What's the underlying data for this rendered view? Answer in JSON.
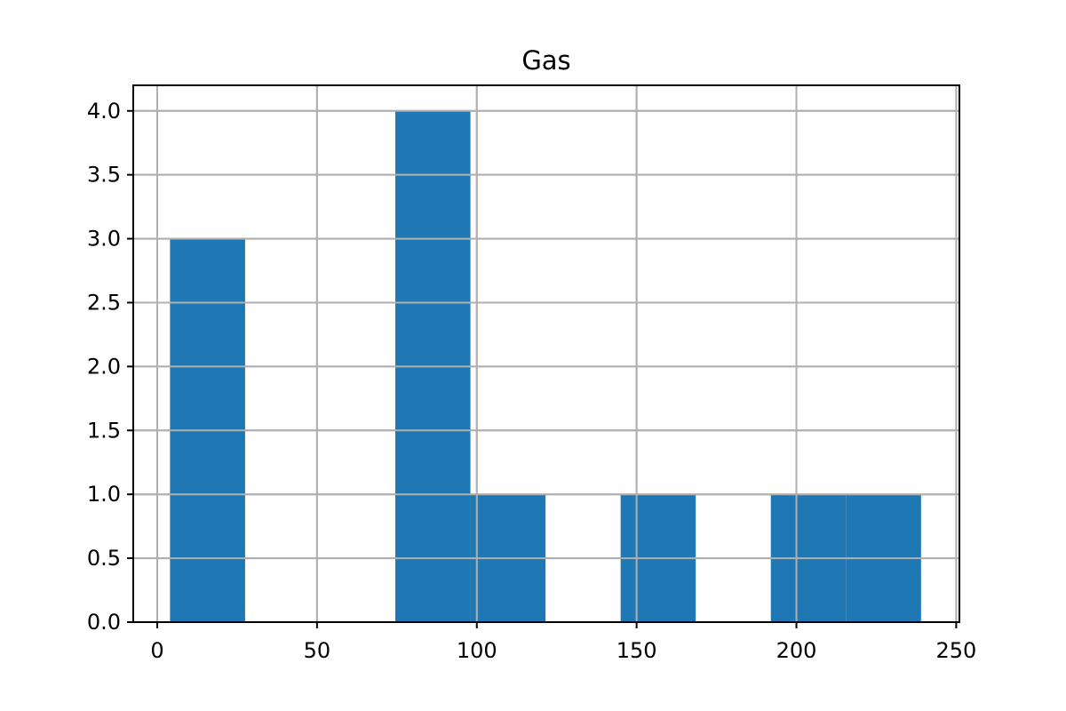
{
  "chart_data": {
    "type": "bar",
    "title": "Gas",
    "xlabel": "",
    "ylabel": "",
    "xlim": [
      -7.5,
      251
    ],
    "ylim": [
      0,
      4.2
    ],
    "grid": true,
    "x_ticks": [
      0,
      50,
      100,
      150,
      200,
      250
    ],
    "x_tick_labels": [
      "0",
      "50",
      "100",
      "150",
      "200",
      "250"
    ],
    "y_ticks": [
      0,
      0.5,
      1.0,
      1.5,
      2.0,
      2.5,
      3.0,
      3.5,
      4.0
    ],
    "y_tick_labels": [
      "0.0",
      "0.5",
      "1.0",
      "1.5",
      "2.0",
      "2.5",
      "3.0",
      "3.5",
      "4.0"
    ],
    "bins": [
      {
        "start": 4,
        "end": 27.5,
        "count": 3
      },
      {
        "start": 27.5,
        "end": 51,
        "count": 0
      },
      {
        "start": 51,
        "end": 74.5,
        "count": 0
      },
      {
        "start": 74.5,
        "end": 98,
        "count": 4
      },
      {
        "start": 98,
        "end": 121.5,
        "count": 1
      },
      {
        "start": 121.5,
        "end": 145,
        "count": 0
      },
      {
        "start": 145,
        "end": 168.5,
        "count": 1
      },
      {
        "start": 168.5,
        "end": 192,
        "count": 0
      },
      {
        "start": 192,
        "end": 215.5,
        "count": 1
      },
      {
        "start": 215.5,
        "end": 239,
        "count": 1
      }
    ],
    "colors": {
      "bar": "#1f77b4",
      "grid": "#b0b0b0",
      "axis": "#000000"
    }
  }
}
